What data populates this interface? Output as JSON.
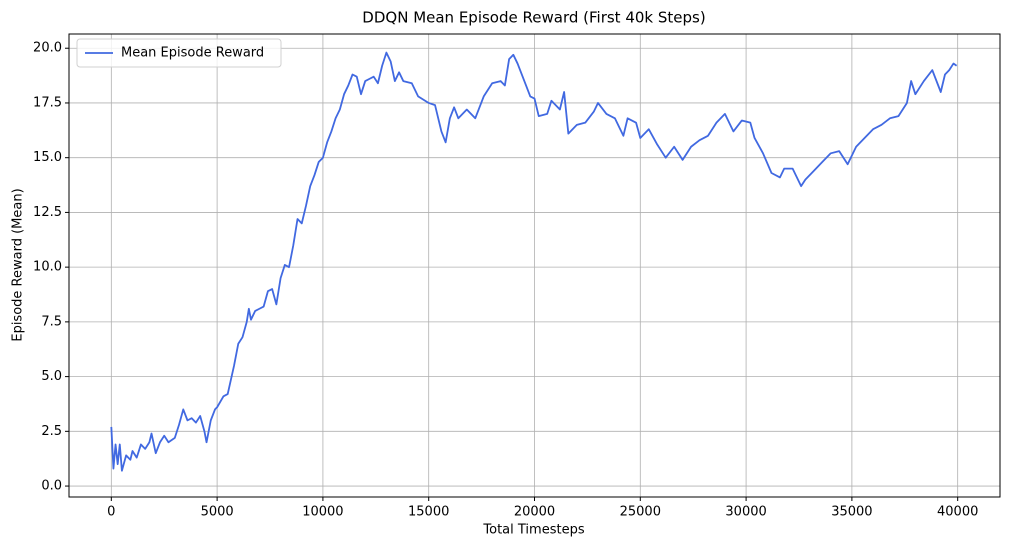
{
  "chart_data": {
    "type": "line",
    "title": "DDQN Mean Episode Reward (First 40k Steps)",
    "x_label": "Total Timesteps",
    "y_label": "Episode Reward (Mean)",
    "x": [
      0,
      100,
      200,
      300,
      400,
      500,
      700,
      900,
      1000,
      1200,
      1400,
      1600,
      1800,
      1900,
      2100,
      2300,
      2500,
      2700,
      3000,
      3200,
      3400,
      3600,
      3800,
      4000,
      4200,
      4400,
      4500,
      4700,
      4900,
      5000,
      5300,
      5500,
      5800,
      6000,
      6200,
      6400,
      6500,
      6600,
      6800,
      7000,
      7200,
      7400,
      7600,
      7800,
      8000,
      8200,
      8400,
      8600,
      8800,
      9000,
      9200,
      9400,
      9600,
      9800,
      10000,
      10200,
      10400,
      10600,
      10800,
      11000,
      11200,
      11400,
      11600,
      11800,
      12000,
      12200,
      12400,
      12600,
      12800,
      13000,
      13200,
      13400,
      13600,
      13800,
      14200,
      14500,
      15000,
      15300,
      15600,
      15800,
      16000,
      16200,
      16400,
      16800,
      17200,
      17600,
      18000,
      18400,
      18600,
      18800,
      19000,
      19200,
      19600,
      19800,
      20000,
      20200,
      20600,
      20800,
      21200,
      21400,
      21600,
      22000,
      22400,
      22800,
      23000,
      23400,
      23800,
      24200,
      24400,
      24800,
      25000,
      25400,
      25800,
      26200,
      26600,
      27000,
      27400,
      27800,
      28200,
      28600,
      29000,
      29400,
      29800,
      30200,
      30400,
      30800,
      31200,
      31600,
      31800,
      32200,
      32600,
      32800,
      33200,
      33600,
      34000,
      34400,
      34800,
      35200,
      35600,
      36000,
      36400,
      36800,
      37200,
      37600,
      37800,
      38000,
      38400,
      38800,
      39200,
      39400,
      39600,
      39800,
      39950
    ],
    "series": [
      {
        "name": "Mean Episode Reward",
        "color": "#4169e1",
        "values": [
          2.7,
          0.8,
          1.9,
          1.0,
          1.9,
          0.7,
          1.4,
          1.2,
          1.6,
          1.3,
          1.9,
          1.7,
          2.0,
          2.4,
          1.5,
          2.0,
          2.3,
          2.0,
          2.2,
          2.8,
          3.5,
          3.0,
          3.1,
          2.9,
          3.2,
          2.5,
          2.0,
          3.0,
          3.5,
          3.6,
          4.1,
          4.2,
          5.5,
          6.5,
          6.8,
          7.5,
          8.1,
          7.6,
          8.0,
          8.1,
          8.2,
          8.9,
          9.0,
          8.3,
          9.5,
          10.1,
          10.0,
          11.0,
          12.2,
          12.0,
          12.8,
          13.7,
          14.2,
          14.8,
          15.0,
          15.7,
          16.2,
          16.8,
          17.2,
          17.9,
          18.3,
          18.8,
          18.7,
          17.9,
          18.5,
          18.6,
          18.7,
          18.4,
          19.2,
          19.8,
          19.4,
          18.5,
          18.9,
          18.5,
          18.4,
          17.8,
          17.5,
          17.4,
          16.2,
          15.7,
          16.8,
          17.3,
          16.8,
          17.2,
          16.8,
          17.8,
          18.4,
          18.5,
          18.3,
          19.5,
          19.7,
          19.3,
          18.3,
          17.8,
          17.7,
          16.9,
          17.0,
          17.6,
          17.2,
          18.0,
          16.1,
          16.5,
          16.6,
          17.1,
          17.5,
          17.0,
          16.8,
          16.0,
          16.8,
          16.6,
          15.9,
          16.3,
          15.6,
          15.0,
          15.5,
          14.9,
          15.5,
          15.8,
          16.0,
          16.6,
          17.0,
          16.2,
          16.7,
          16.6,
          15.9,
          15.2,
          14.3,
          14.1,
          14.5,
          14.5,
          13.7,
          14.0,
          14.4,
          14.8,
          15.2,
          15.3,
          14.7,
          15.5,
          15.9,
          16.3,
          16.5,
          16.8,
          16.9,
          17.5,
          18.5,
          17.9,
          18.5,
          19.0,
          18.0,
          18.8,
          19.0,
          19.3,
          19.2
        ]
      }
    ],
    "xlim": [
      -2000,
      42000
    ],
    "ylim": [
      -0.5,
      20.65
    ],
    "xticks": [
      0,
      5000,
      10000,
      15000,
      20000,
      25000,
      30000,
      35000,
      40000
    ],
    "yticks": [
      {
        "value": 0,
        "label": "0.0"
      },
      2.5,
      {
        "value": 5,
        "label": "5.0"
      },
      7.5,
      {
        "value": 10,
        "label": "10.0"
      },
      12.5,
      {
        "value": 15,
        "label": "15.0"
      },
      17.5,
      {
        "value": 20,
        "label": "20.0"
      }
    ],
    "grid": true,
    "legend": "upper-left"
  }
}
